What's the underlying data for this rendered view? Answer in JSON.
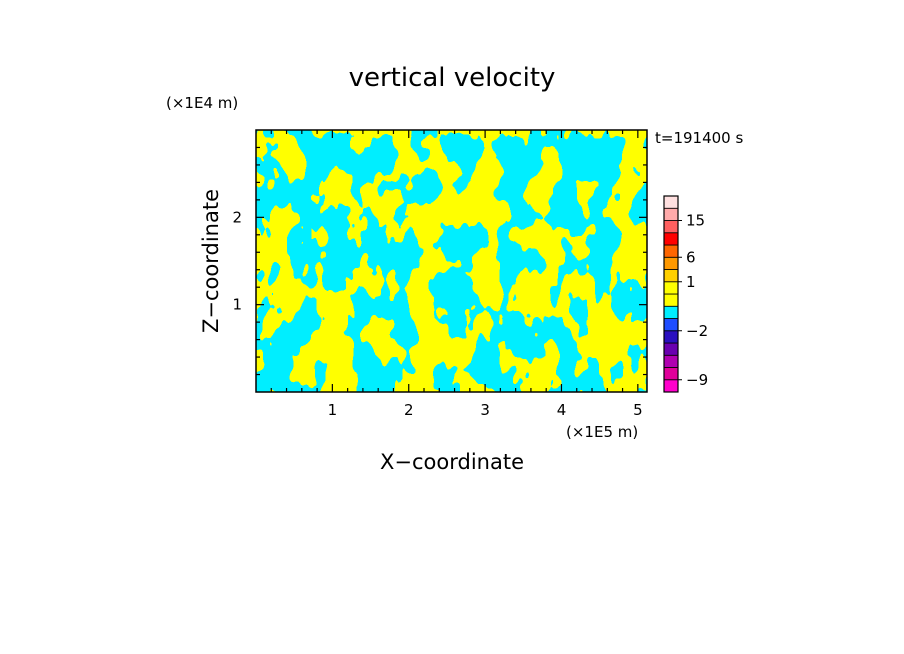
{
  "chart_data": {
    "type": "heatmap",
    "title": "vertical velocity",
    "xlabel": "X−coordinate",
    "ylabel": "Z−coordinate",
    "x_unit": "(×1E5 m)",
    "y_unit": "(×1E4 m)",
    "time_label": "t=191400 s",
    "xlim": [
      0,
      5.12
    ],
    "ylim": [
      0,
      3.0
    ],
    "x_ticks": [
      {
        "value": 1,
        "label": "1"
      },
      {
        "value": 2,
        "label": "2"
      },
      {
        "value": 3,
        "label": "3"
      },
      {
        "value": 4,
        "label": "4"
      },
      {
        "value": 5,
        "label": "5"
      }
    ],
    "y_ticks": [
      {
        "value": 1,
        "label": "1"
      },
      {
        "value": 2,
        "label": "2"
      }
    ],
    "field_colors": {
      "negative": "#00eeff",
      "positive": "#ffff00"
    },
    "colorbar": {
      "levels": [
        {
          "value": -12,
          "color": "#ff00cc"
        },
        {
          "value": -9,
          "color": "#e0009a"
        },
        {
          "value": -6,
          "color": "#b000b0"
        },
        {
          "value": -4,
          "color": "#6a00b0"
        },
        {
          "value": -3,
          "color": "#2a10c0"
        },
        {
          "value": -2,
          "color": "#1f4dff"
        },
        {
          "value": -1,
          "color": "#00eeff"
        },
        {
          "value": 0,
          "color": "#ffff00"
        },
        {
          "value": 0.5,
          "color": "#ffff00"
        },
        {
          "value": 1,
          "color": "#ffd000"
        },
        {
          "value": 3,
          "color": "#ff9900"
        },
        {
          "value": 6,
          "color": "#ff6600"
        },
        {
          "value": 9,
          "color": "#ff0000"
        },
        {
          "value": 12,
          "color": "#ff6060"
        },
        {
          "value": 15,
          "color": "#ffaaaa"
        },
        {
          "value": 18,
          "color": "#ffe0e0"
        }
      ],
      "tick_labels": [
        {
          "value": 15,
          "label": "15"
        },
        {
          "value": 6,
          "label": "6"
        },
        {
          "value": 1,
          "label": "1"
        },
        {
          "value": -2,
          "label": "−2"
        },
        {
          "value": -9,
          "label": "−9"
        }
      ]
    }
  }
}
